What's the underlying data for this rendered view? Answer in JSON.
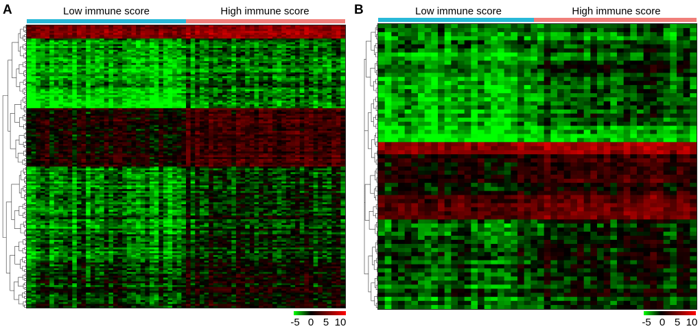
{
  "colors": {
    "low_group": "#28b9d8",
    "high_group": "#f07f7a",
    "scale_low": "#00ff00",
    "scale_mid": "#000000",
    "scale_high": "#ff0000"
  },
  "chart_data": [
    {
      "type": "heatmap",
      "panel_label": "A",
      "groups": [
        {
          "name": "Low immune score",
          "fraction": 0.5,
          "color": "#28b9d8"
        },
        {
          "name": "High immune score",
          "fraction": 0.5,
          "color": "#f07f7a"
        }
      ],
      "n_columns": 70,
      "n_rows": 150,
      "row_blocks": [
        {
          "fraction": 0.045,
          "low_mean": 5.0,
          "high_mean": 6.0
        },
        {
          "fraction": 0.19,
          "low_mean": -3.2,
          "high_mean": -2.2
        },
        {
          "fraction": 0.06,
          "low_mean": -4.2,
          "high_mean": -2.0
        },
        {
          "fraction": 0.205,
          "low_mean": 0.8,
          "high_mean": 2.2
        },
        {
          "fraction": 0.34,
          "low_mean": -2.4,
          "high_mean": -1.0
        },
        {
          "fraction": 0.16,
          "low_mean": -0.9,
          "high_mean": 0.4
        }
      ],
      "colorscale": {
        "min": -5,
        "max": 10,
        "ticks": [
          "-5",
          "0",
          "5",
          "10"
        ]
      }
    },
    {
      "type": "heatmap",
      "panel_label": "B",
      "groups": [
        {
          "name": "Low immune score",
          "fraction": 0.49,
          "color": "#28b9d8"
        },
        {
          "name": "High immune score",
          "fraction": 0.51,
          "color": "#f07f7a"
        }
      ],
      "n_columns": 48,
      "n_rows": 70,
      "row_blocks": [
        {
          "fraction": 0.08,
          "low_mean": -2.2,
          "high_mean": -1.8
        },
        {
          "fraction": 0.28,
          "low_mean": -3.0,
          "high_mean": -1.2
        },
        {
          "fraction": 0.06,
          "low_mean": -4.6,
          "high_mean": -3.6
        },
        {
          "fraction": 0.04,
          "low_mean": 5.0,
          "high_mean": 6.0
        },
        {
          "fraction": 0.14,
          "low_mean": 0.5,
          "high_mean": 1.8
        },
        {
          "fraction": 0.09,
          "low_mean": 2.6,
          "high_mean": 3.8
        },
        {
          "fraction": 0.31,
          "low_mean": -1.8,
          "high_mean": -0.4
        }
      ],
      "colorscale": {
        "min": -5,
        "max": 10,
        "ticks": [
          "-5",
          "0",
          "5",
          "10"
        ]
      }
    }
  ]
}
